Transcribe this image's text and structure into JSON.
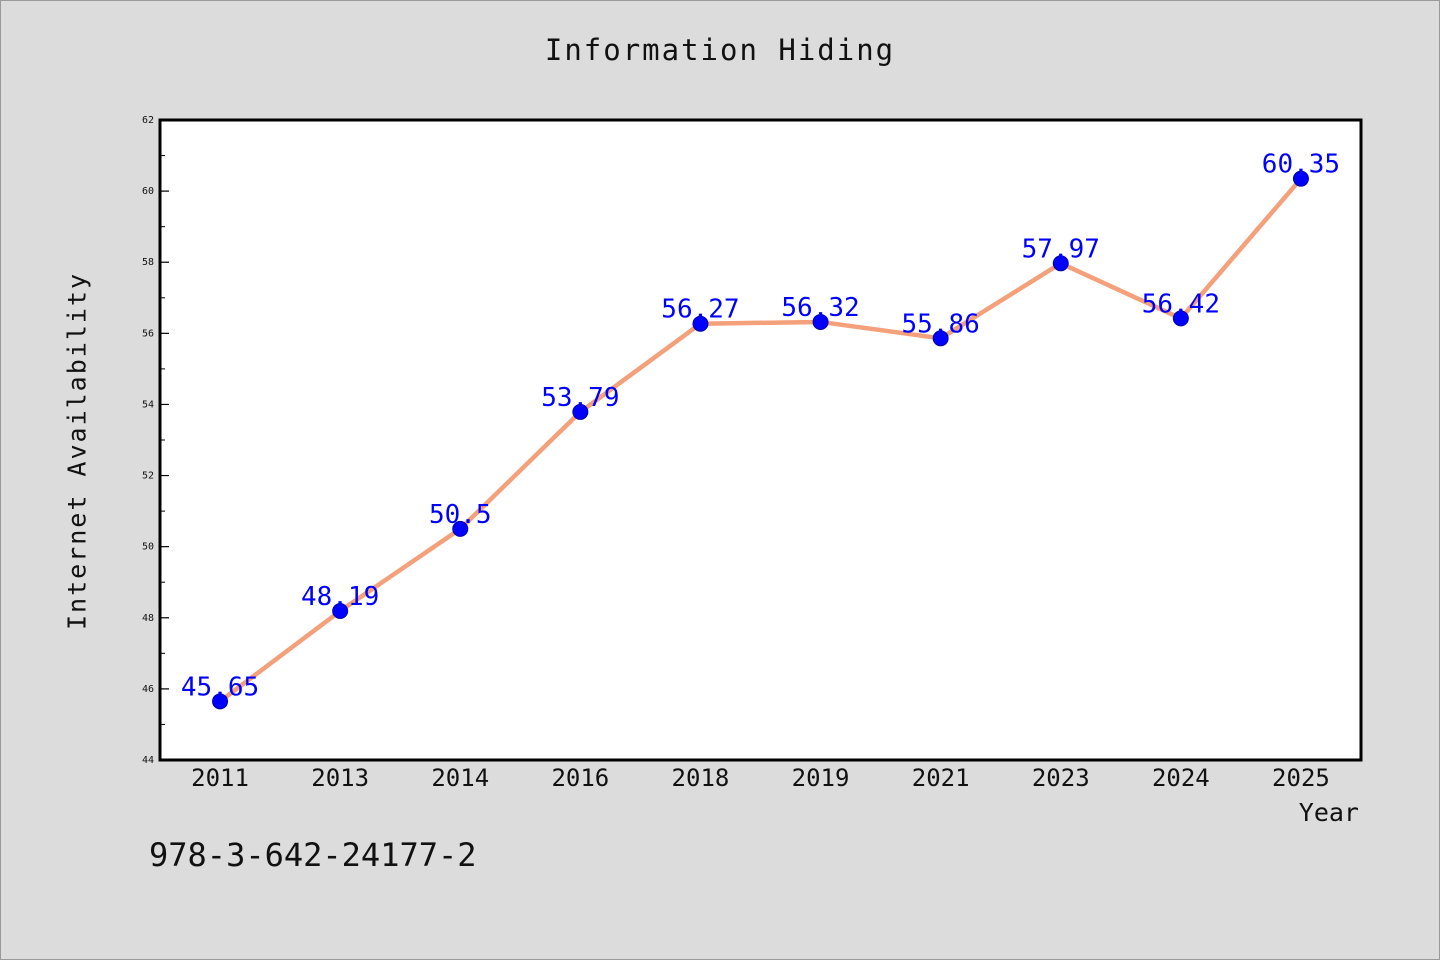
{
  "chart_data": {
    "type": "line",
    "title": "Information Hiding",
    "xlabel": "Year",
    "ylabel": "Internet Availability",
    "categories": [
      "2011",
      "2013",
      "2014",
      "2016",
      "2018",
      "2019",
      "2021",
      "2023",
      "2024",
      "2025"
    ],
    "values": [
      45.65,
      48.19,
      50.5,
      53.79,
      56.27,
      56.32,
      55.86,
      57.97,
      56.42,
      60.35
    ],
    "data_labels": [
      "45.65",
      "48.19",
      "50.5",
      "53.79",
      "56.27",
      "56.32",
      "55.86",
      "57.97",
      "56.42",
      "60.35"
    ],
    "yticks": [
      44,
      46,
      48,
      50,
      52,
      54,
      56,
      58,
      60,
      62
    ],
    "ylim": [
      44,
      62
    ],
    "grid": false,
    "legend": "none",
    "colors": {
      "line": "#f4a07a",
      "marker": "#0000ff",
      "label": "#0000ff",
      "background": "#dcdcdc",
      "plot_background": "#ffffff"
    }
  },
  "footer": {
    "isbn": "978-3-642-24177-2"
  }
}
